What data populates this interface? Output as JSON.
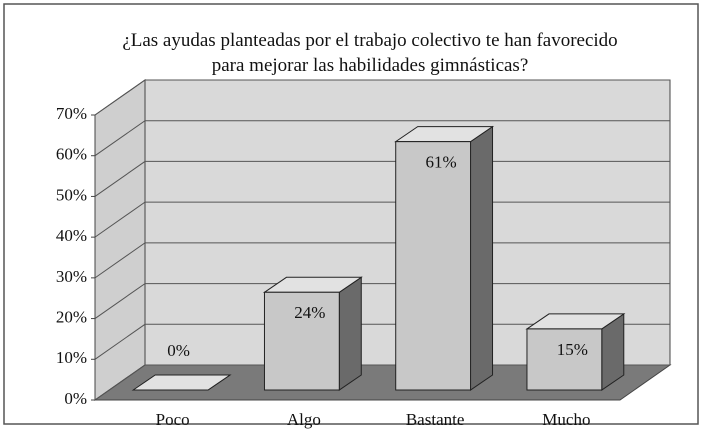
{
  "chart_data": {
    "type": "bar3d",
    "title": "¿Las ayudas planteadas por el trabajo colectivo te han favorecido para mejorar las habilidades gimnásticas?",
    "categories": [
      "Poco",
      "Algo",
      "Bastante",
      "Mucho"
    ],
    "values": [
      0,
      24,
      61,
      15
    ],
    "value_labels": [
      "0%",
      "24%",
      "61%",
      "15%"
    ],
    "color": "#c8c8c8",
    "ylim": [
      0,
      70
    ],
    "yticks": [
      {
        "value": 0,
        "label": "0%"
      },
      {
        "value": 10,
        "label": "10%"
      },
      {
        "value": 20,
        "label": "20%"
      },
      {
        "value": 30,
        "label": "30%"
      },
      {
        "value": 40,
        "label": "40%"
      },
      {
        "value": 50,
        "label": "50%"
      },
      {
        "value": 60,
        "label": "60%"
      },
      {
        "value": 70,
        "label": "70%"
      }
    ],
    "grid": true
  }
}
